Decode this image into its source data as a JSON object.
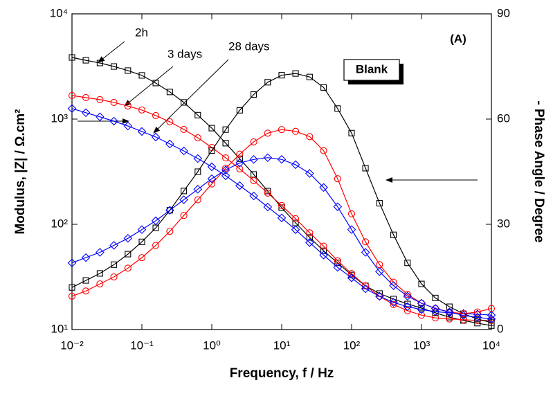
{
  "chart_data": {
    "type": "line",
    "x_label": "Frequency, f / Hz",
    "y_label": "Modulus, |Z| / Ω.cm²",
    "y2_label": "- Phase Angle / Degree",
    "panel_label": "(A)",
    "box_label": "Blank",
    "xscale": "log",
    "yscale": "log",
    "xlim": [
      0.01,
      10000
    ],
    "ylim": [
      10,
      10000
    ],
    "y2lim": [
      0,
      90
    ],
    "xticks": [
      {
        "value": 0.01,
        "label": "10⁻²"
      },
      {
        "value": 0.1,
        "label": "10⁻¹"
      },
      {
        "value": 1,
        "label": "10⁰"
      },
      {
        "value": 10,
        "label": "10¹"
      },
      {
        "value": 100,
        "label": "10²"
      },
      {
        "value": 1000,
        "label": "10³"
      },
      {
        "value": 10000,
        "label": "10⁴"
      }
    ],
    "yticks": [
      {
        "value": 10,
        "label": "10¹"
      },
      {
        "value": 100,
        "label": "10²"
      },
      {
        "value": 1000,
        "label": "10³"
      },
      {
        "value": 10000,
        "label": "10⁴"
      }
    ],
    "y2ticks": [
      0,
      30,
      60,
      90
    ],
    "x": [
      0.01,
      0.0158,
      0.0251,
      0.0398,
      0.0631,
      0.1,
      0.158,
      0.251,
      0.398,
      0.631,
      1,
      1.58,
      2.51,
      3.98,
      6.31,
      10,
      15.8,
      25.1,
      39.8,
      63.1,
      100,
      158,
      251,
      398,
      631,
      1000,
      1580,
      2510,
      3980,
      6310,
      10000
    ],
    "series": [
      {
        "name": "2h",
        "color": "#000000",
        "marker": "square",
        "values": [
          3850,
          3620,
          3410,
          3160,
          2890,
          2600,
          2200,
          1810,
          1440,
          1090,
          820,
          590,
          420,
          298,
          207,
          144,
          103,
          75,
          56,
          43,
          33,
          26,
          22,
          19.5,
          17.5,
          16,
          14.4,
          13.1,
          12.2,
          11.5,
          10.9
        ]
      },
      {
        "name": "3 days",
        "color": "#ff0000",
        "marker": "circle",
        "values": [
          1675,
          1600,
          1530,
          1440,
          1330,
          1220,
          1080,
          942,
          797,
          664,
          537,
          428,
          336,
          260,
          198,
          151,
          113,
          83,
          62,
          45,
          34,
          26,
          20.7,
          17.3,
          15.1,
          13.7,
          12.9,
          12.6,
          12.4,
          12.2,
          12.2
        ]
      },
      {
        "name": "28 days",
        "color": "#0000ff",
        "marker": "diamond",
        "values": [
          1260,
          1150,
          1050,
          955,
          860,
          762,
          675,
          580,
          498,
          422,
          352,
          289,
          233,
          186,
          146,
          115,
          89,
          67,
          51,
          39,
          31,
          24.4,
          20.7,
          18.1,
          16.5,
          15.5,
          14.8,
          14.4,
          14.2,
          14,
          13.7
        ]
      },
      {
        "axis": "y2",
        "color": "#000000",
        "marker": "square",
        "values": [
          12,
          14,
          16,
          18.5,
          21.5,
          25,
          29,
          34,
          39.5,
          45,
          51,
          57,
          62.5,
          67,
          70.5,
          72.5,
          73,
          72,
          69,
          63,
          56,
          46,
          36,
          27,
          19,
          13,
          9,
          6.5,
          4.5,
          3,
          2
        ]
      },
      {
        "axis": "y2",
        "color": "#ff0000",
        "marker": "circle",
        "values": [
          9.5,
          11,
          13,
          15,
          17.5,
          20.5,
          24,
          28,
          32.5,
          37,
          41.5,
          46,
          50,
          53.5,
          56,
          57,
          56.5,
          55,
          51,
          43,
          33,
          25,
          18.5,
          13.5,
          10,
          7.5,
          6,
          5,
          4.5,
          5,
          6
        ]
      },
      {
        "axis": "y2",
        "color": "#0000ff",
        "marker": "diamond",
        "values": [
          19,
          20.5,
          22,
          24,
          26,
          28.5,
          31,
          34,
          37,
          40,
          43,
          45.5,
          47.5,
          48.5,
          49,
          48.5,
          47,
          44.5,
          40.5,
          35,
          28.5,
          22,
          16.5,
          12.5,
          9.5,
          7.5,
          6,
          5,
          4,
          3.5,
          3
        ]
      }
    ]
  }
}
